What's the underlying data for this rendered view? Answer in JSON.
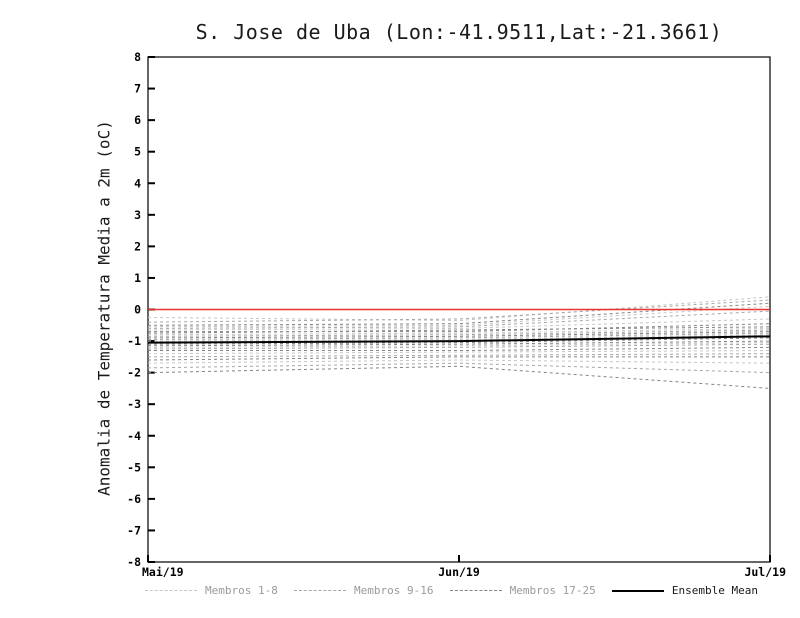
{
  "chart_data": {
    "type": "line",
    "title": "S. Jose de Uba (Lon:-41.9511,Lat:-21.3661)",
    "ylabel": "Anomalia de Temperatura Media a 2m (oC)",
    "xlabel": "",
    "x_ticklabels": [
      "Mai/19",
      "Jun/19",
      "Jul/19"
    ],
    "ylim": [
      -8,
      8
    ],
    "ytick_step": 1,
    "grid": false,
    "legend_position": "bottom",
    "reference_line": {
      "name": "zero-anomaly-line",
      "color": "#ee3333",
      "values": [
        0,
        0,
        0
      ]
    },
    "ensemble_mean": {
      "name": "Ensemble Mean",
      "color": "#000000",
      "values": [
        -1.05,
        -1.0,
        -0.85
      ]
    },
    "member_groups": [
      {
        "name": "Membros 1-8",
        "color": "#c6c6c6",
        "members": [
          [
            -0.25,
            -0.35,
            0.4
          ],
          [
            -0.55,
            -0.5,
            0.1
          ],
          [
            -0.8,
            -0.75,
            -0.6
          ],
          [
            -1.0,
            -0.95,
            -0.8
          ],
          [
            -1.2,
            -1.15,
            -1.05
          ],
          [
            -1.4,
            -1.35,
            -1.3
          ],
          [
            -1.7,
            -1.6,
            -1.7
          ],
          [
            -0.65,
            -0.6,
            -0.3
          ]
        ]
      },
      {
        "name": "Membros 9-16",
        "color": "#a6a6a6",
        "members": [
          [
            -0.4,
            -0.3,
            0.3
          ],
          [
            -0.6,
            -0.55,
            -0.05
          ],
          [
            -0.85,
            -0.8,
            -0.65
          ],
          [
            -1.05,
            -1.0,
            -0.85
          ],
          [
            -1.25,
            -1.2,
            -1.1
          ],
          [
            -1.5,
            -1.45,
            -1.4
          ],
          [
            -1.85,
            -1.7,
            -2.0
          ],
          [
            -0.95,
            -0.9,
            -0.75
          ]
        ]
      },
      {
        "name": "Membros 17-25",
        "color": "#848484",
        "members": [
          [
            -0.5,
            -0.45,
            0.2
          ],
          [
            -0.7,
            -0.7,
            -0.45
          ],
          [
            -0.9,
            -0.85,
            -0.7
          ],
          [
            -1.1,
            -1.05,
            -0.9
          ],
          [
            -1.3,
            -1.3,
            -1.2
          ],
          [
            -1.6,
            -1.5,
            -1.5
          ],
          [
            -2.0,
            -1.8,
            -2.5
          ],
          [
            -0.75,
            -0.65,
            -0.55
          ],
          [
            -1.15,
            -1.1,
            -1.0
          ]
        ]
      }
    ],
    "legend": [
      {
        "label": "Membros 1-8",
        "color": "#c6c6c6",
        "line": "dashed",
        "text_color": "#9a9a9a"
      },
      {
        "label": "Membros 9-16",
        "color": "#a6a6a6",
        "line": "dashed",
        "text_color": "#9a9a9a"
      },
      {
        "label": "Membros 17-25",
        "color": "#848484",
        "line": "dashed",
        "text_color": "#9a9a9a"
      },
      {
        "label": "Ensemble Mean",
        "color": "#000000",
        "line": "solid",
        "text_color": "#1a1a1a"
      }
    ]
  }
}
